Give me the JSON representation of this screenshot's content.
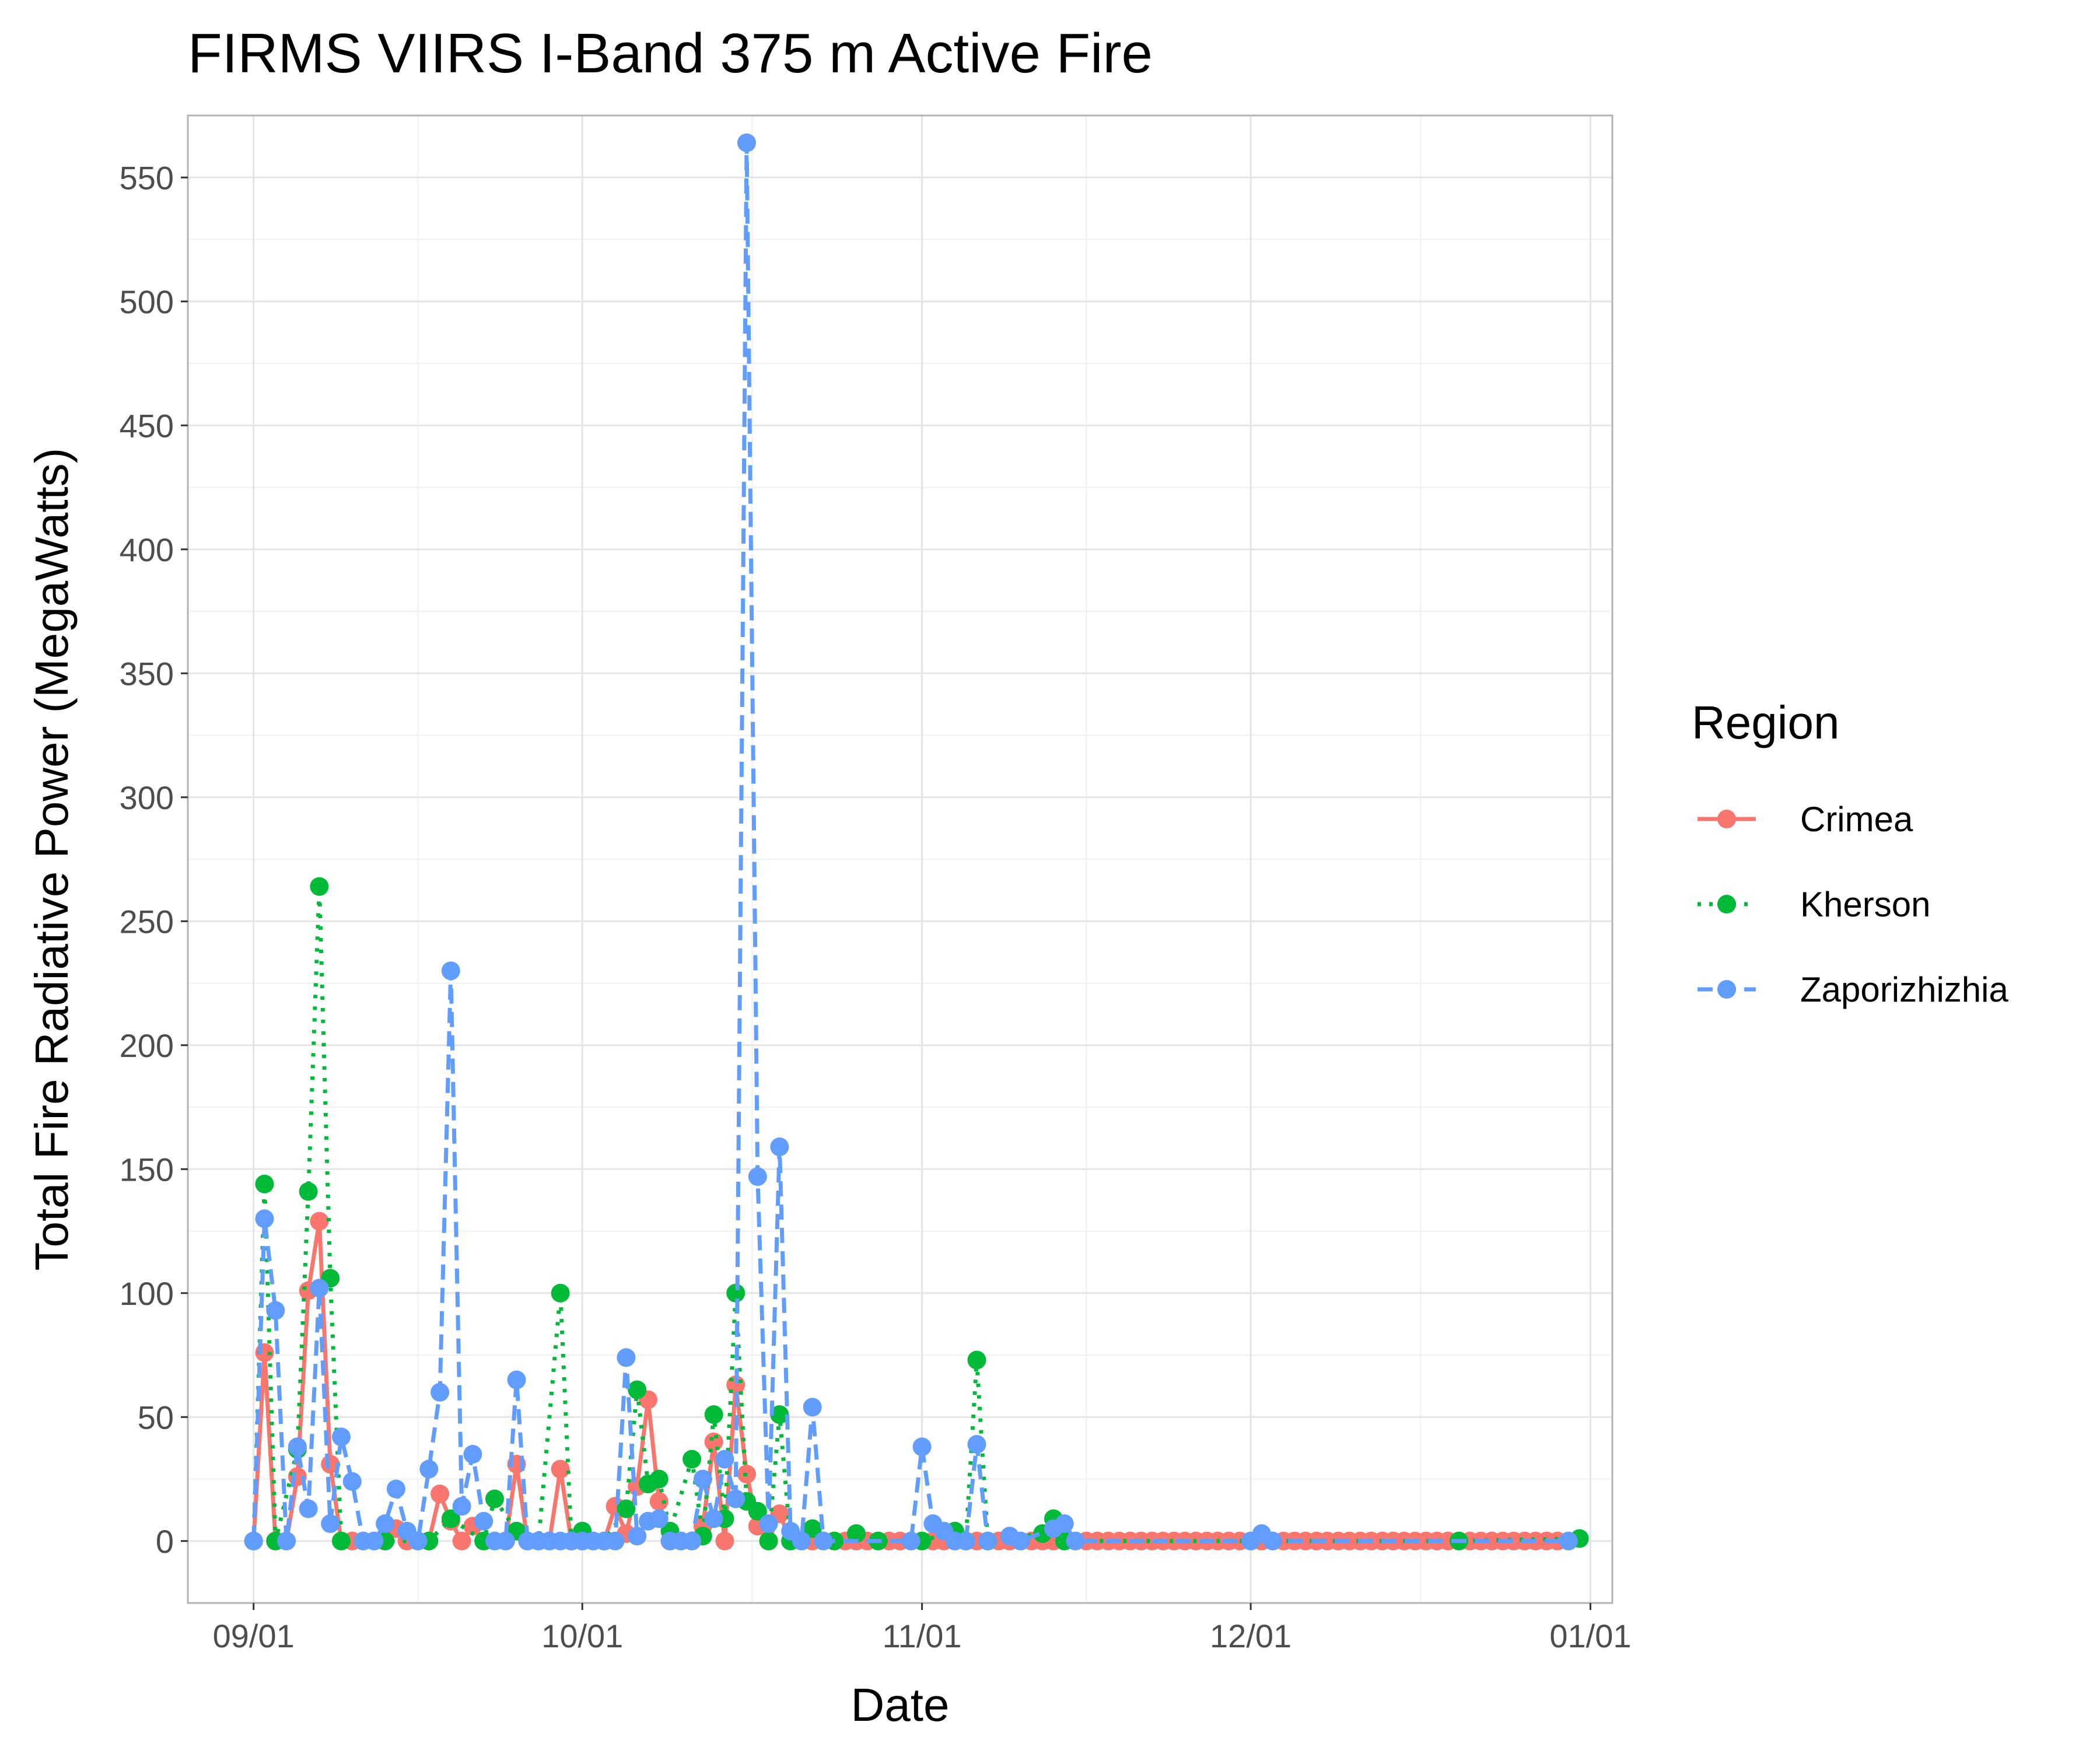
{
  "chart_data": {
    "type": "line",
    "title": "FIRMS VIIRS I-Band 375 m Active Fire",
    "xlabel": "Date",
    "ylabel": "Total Fire Radiative Power (MegaWatts)",
    "x_domain": [
      "2021-08-26",
      "2022-01-03"
    ],
    "ylim": [
      -25,
      575
    ],
    "x_ticks": [
      {
        "date": "2021-09-01",
        "label": "09/01"
      },
      {
        "date": "2021-10-01",
        "label": "10/01"
      },
      {
        "date": "2021-11-01",
        "label": "11/01"
      },
      {
        "date": "2021-12-01",
        "label": "12/01"
      },
      {
        "date": "2022-01-01",
        "label": "01/01"
      }
    ],
    "y_ticks": [
      0,
      50,
      100,
      150,
      200,
      250,
      300,
      350,
      400,
      450,
      500,
      550
    ],
    "grid": true,
    "legend": {
      "title": "Region",
      "position": "right"
    },
    "series": [
      {
        "name": "Crimea",
        "color": "#F8766D",
        "dash": "solid",
        "points": [
          [
            "2021-09-01",
            0
          ],
          [
            "2021-09-02",
            76
          ],
          [
            "2021-09-03",
            0
          ],
          [
            "2021-09-04",
            0
          ],
          [
            "2021-09-05",
            26
          ],
          [
            "2021-09-06",
            101
          ],
          [
            "2021-09-07",
            129
          ],
          [
            "2021-09-08",
            31
          ],
          [
            "2021-09-09",
            0
          ],
          [
            "2021-09-10",
            0
          ],
          [
            "2021-09-11",
            0
          ],
          [
            "2021-09-12",
            0
          ],
          [
            "2021-09-13",
            0
          ],
          [
            "2021-09-14",
            5
          ],
          [
            "2021-09-15",
            0
          ],
          [
            "2021-09-16",
            0
          ],
          [
            "2021-09-17",
            0
          ],
          [
            "2021-09-18",
            19
          ],
          [
            "2021-09-19",
            8
          ],
          [
            "2021-09-20",
            0
          ],
          [
            "2021-09-21",
            6
          ],
          [
            "2021-09-22",
            0
          ],
          [
            "2021-09-23",
            0
          ],
          [
            "2021-09-24",
            0
          ],
          [
            "2021-09-25",
            31
          ],
          [
            "2021-09-26",
            0
          ],
          [
            "2021-09-27",
            0
          ],
          [
            "2021-09-28",
            0
          ],
          [
            "2021-09-29",
            29
          ],
          [
            "2021-09-30",
            0
          ],
          [
            "2021-10-01",
            0
          ],
          [
            "2021-10-02",
            0
          ],
          [
            "2021-10-03",
            0
          ],
          [
            "2021-10-04",
            14
          ],
          [
            "2021-10-05",
            3
          ],
          [
            "2021-10-06",
            22
          ],
          [
            "2021-10-07",
            57
          ],
          [
            "2021-10-08",
            16
          ],
          [
            "2021-10-09",
            0
          ],
          [
            "2021-10-10",
            0
          ],
          [
            "2021-10-11",
            0
          ],
          [
            "2021-10-12",
            6
          ],
          [
            "2021-10-13",
            40
          ],
          [
            "2021-10-14",
            0
          ],
          [
            "2021-10-15",
            63
          ],
          [
            "2021-10-16",
            27
          ],
          [
            "2021-10-17",
            6
          ],
          [
            "2021-10-18",
            0
          ],
          [
            "2021-10-19",
            11
          ],
          [
            "2021-10-20",
            0
          ],
          [
            "2021-10-21",
            0
          ],
          [
            "2021-10-22",
            0
          ],
          [
            "2021-10-23",
            0
          ],
          [
            "2021-10-24",
            0
          ],
          [
            "2021-10-25",
            0
          ],
          [
            "2021-10-26",
            0
          ],
          [
            "2021-10-27",
            0
          ],
          [
            "2021-10-28",
            0
          ],
          [
            "2021-10-29",
            0
          ],
          [
            "2021-10-30",
            0
          ],
          [
            "2021-10-31",
            0
          ],
          [
            "2021-11-01",
            0
          ],
          [
            "2021-11-02",
            0
          ],
          [
            "2021-11-03",
            0
          ],
          [
            "2021-11-04",
            0
          ],
          [
            "2021-11-05",
            0
          ],
          [
            "2021-11-06",
            0
          ],
          [
            "2021-11-07",
            0
          ],
          [
            "2021-11-08",
            0
          ],
          [
            "2021-11-09",
            0
          ],
          [
            "2021-11-10",
            0
          ],
          [
            "2021-11-11",
            0
          ],
          [
            "2021-11-12",
            0
          ],
          [
            "2021-11-13",
            0
          ],
          [
            "2021-11-14",
            0
          ],
          [
            "2021-11-15",
            0
          ],
          [
            "2021-11-16",
            0
          ],
          [
            "2021-11-17",
            0
          ],
          [
            "2021-11-18",
            0
          ],
          [
            "2021-11-19",
            0
          ],
          [
            "2021-11-20",
            0
          ],
          [
            "2021-11-21",
            0
          ],
          [
            "2021-11-22",
            0
          ],
          [
            "2021-11-23",
            0
          ],
          [
            "2021-11-24",
            0
          ],
          [
            "2021-11-25",
            0
          ],
          [
            "2021-11-26",
            0
          ],
          [
            "2021-11-27",
            0
          ],
          [
            "2021-11-28",
            0
          ],
          [
            "2021-11-29",
            0
          ],
          [
            "2021-11-30",
            0
          ],
          [
            "2021-12-01",
            0
          ],
          [
            "2021-12-02",
            0
          ],
          [
            "2021-12-03",
            0
          ],
          [
            "2021-12-04",
            0
          ],
          [
            "2021-12-05",
            0
          ],
          [
            "2021-12-06",
            0
          ],
          [
            "2021-12-07",
            0
          ],
          [
            "2021-12-08",
            0
          ],
          [
            "2021-12-09",
            0
          ],
          [
            "2021-12-10",
            0
          ],
          [
            "2021-12-11",
            0
          ],
          [
            "2021-12-12",
            0
          ],
          [
            "2021-12-13",
            0
          ],
          [
            "2021-12-14",
            0
          ],
          [
            "2021-12-15",
            0
          ],
          [
            "2021-12-16",
            0
          ],
          [
            "2021-12-17",
            0
          ],
          [
            "2021-12-18",
            0
          ],
          [
            "2021-12-19",
            0
          ],
          [
            "2021-12-20",
            0
          ],
          [
            "2021-12-21",
            0
          ],
          [
            "2021-12-22",
            0
          ],
          [
            "2021-12-23",
            0
          ],
          [
            "2021-12-24",
            0
          ],
          [
            "2021-12-25",
            0
          ],
          [
            "2021-12-26",
            0
          ],
          [
            "2021-12-27",
            0
          ],
          [
            "2021-12-28",
            0
          ],
          [
            "2021-12-29",
            0
          ],
          [
            "2021-12-30",
            0
          ]
        ]
      },
      {
        "name": "Kherson",
        "color": "#00BA38",
        "dash": "dotted",
        "points": [
          [
            "2021-09-01",
            0
          ],
          [
            "2021-09-02",
            144
          ],
          [
            "2021-09-03",
            0
          ],
          [
            "2021-09-05",
            37
          ],
          [
            "2021-09-06",
            141
          ],
          [
            "2021-09-07",
            264
          ],
          [
            "2021-09-08",
            106
          ],
          [
            "2021-09-09",
            0
          ],
          [
            "2021-09-13",
            0
          ],
          [
            "2021-09-17",
            0
          ],
          [
            "2021-09-19",
            9
          ],
          [
            "2021-09-22",
            0
          ],
          [
            "2021-09-23",
            17
          ],
          [
            "2021-09-25",
            4
          ],
          [
            "2021-09-27",
            0
          ],
          [
            "2021-09-29",
            100
          ],
          [
            "2021-09-30",
            0
          ],
          [
            "2021-10-01",
            4
          ],
          [
            "2021-10-03",
            0
          ],
          [
            "2021-10-05",
            13
          ],
          [
            "2021-10-06",
            61
          ],
          [
            "2021-10-07",
            23
          ],
          [
            "2021-10-08",
            25
          ],
          [
            "2021-10-09",
            4
          ],
          [
            "2021-10-11",
            33
          ],
          [
            "2021-10-12",
            2
          ],
          [
            "2021-10-13",
            51
          ],
          [
            "2021-10-14",
            9
          ],
          [
            "2021-10-15",
            100
          ],
          [
            "2021-10-16",
            16
          ],
          [
            "2021-10-17",
            12
          ],
          [
            "2021-10-18",
            0
          ],
          [
            "2021-10-19",
            51
          ],
          [
            "2021-10-20",
            0
          ],
          [
            "2021-10-22",
            5
          ],
          [
            "2021-10-24",
            0
          ],
          [
            "2021-10-26",
            3
          ],
          [
            "2021-10-28",
            0
          ],
          [
            "2021-11-01",
            0
          ],
          [
            "2021-11-04",
            4
          ],
          [
            "2021-11-05",
            0
          ],
          [
            "2021-11-06",
            73
          ],
          [
            "2021-11-07",
            0
          ],
          [
            "2021-11-12",
            3
          ],
          [
            "2021-11-13",
            9
          ],
          [
            "2021-11-14",
            0
          ],
          [
            "2021-12-20",
            0
          ],
          [
            "2021-12-31",
            1
          ]
        ]
      },
      {
        "name": "Zaporizhizhia",
        "color": "#619CFF",
        "dash": "dashed",
        "points": [
          [
            "2021-09-01",
            0
          ],
          [
            "2021-09-02",
            130
          ],
          [
            "2021-09-03",
            93
          ],
          [
            "2021-09-04",
            0
          ],
          [
            "2021-09-05",
            38
          ],
          [
            "2021-09-06",
            13
          ],
          [
            "2021-09-07",
            102
          ],
          [
            "2021-09-08",
            7
          ],
          [
            "2021-09-09",
            42
          ],
          [
            "2021-09-10",
            24
          ],
          [
            "2021-09-11",
            0
          ],
          [
            "2021-09-12",
            0
          ],
          [
            "2021-09-13",
            7
          ],
          [
            "2021-09-14",
            21
          ],
          [
            "2021-09-15",
            4
          ],
          [
            "2021-09-16",
            0
          ],
          [
            "2021-09-17",
            29
          ],
          [
            "2021-09-18",
            60
          ],
          [
            "2021-09-19",
            230
          ],
          [
            "2021-09-20",
            14
          ],
          [
            "2021-09-21",
            35
          ],
          [
            "2021-09-22",
            8
          ],
          [
            "2021-09-23",
            0
          ],
          [
            "2021-09-24",
            0
          ],
          [
            "2021-09-25",
            65
          ],
          [
            "2021-09-26",
            0
          ],
          [
            "2021-09-27",
            0
          ],
          [
            "2021-09-28",
            0
          ],
          [
            "2021-09-29",
            0
          ],
          [
            "2021-09-30",
            0
          ],
          [
            "2021-10-01",
            0
          ],
          [
            "2021-10-02",
            0
          ],
          [
            "2021-10-03",
            0
          ],
          [
            "2021-10-04",
            0
          ],
          [
            "2021-10-05",
            74
          ],
          [
            "2021-10-06",
            2
          ],
          [
            "2021-10-07",
            8
          ],
          [
            "2021-10-08",
            9
          ],
          [
            "2021-10-09",
            0
          ],
          [
            "2021-10-10",
            0
          ],
          [
            "2021-10-11",
            0
          ],
          [
            "2021-10-12",
            25
          ],
          [
            "2021-10-13",
            9
          ],
          [
            "2021-10-14",
            33
          ],
          [
            "2021-10-15",
            17
          ],
          [
            "2021-10-16",
            564
          ],
          [
            "2021-10-17",
            147
          ],
          [
            "2021-10-18",
            7
          ],
          [
            "2021-10-19",
            159
          ],
          [
            "2021-10-20",
            4
          ],
          [
            "2021-10-21",
            0
          ],
          [
            "2021-10-22",
            54
          ],
          [
            "2021-10-23",
            0
          ],
          [
            "2021-10-31",
            0
          ],
          [
            "2021-11-01",
            38
          ],
          [
            "2021-11-02",
            7
          ],
          [
            "2021-11-03",
            4
          ],
          [
            "2021-11-04",
            0
          ],
          [
            "2021-11-05",
            0
          ],
          [
            "2021-11-06",
            39
          ],
          [
            "2021-11-07",
            0
          ],
          [
            "2021-11-09",
            2
          ],
          [
            "2021-11-10",
            0
          ],
          [
            "2021-11-13",
            5
          ],
          [
            "2021-11-14",
            7
          ],
          [
            "2021-11-15",
            0
          ],
          [
            "2021-12-01",
            0
          ],
          [
            "2021-12-02",
            3
          ],
          [
            "2021-12-03",
            0
          ],
          [
            "2021-12-30",
            0
          ]
        ]
      }
    ]
  }
}
